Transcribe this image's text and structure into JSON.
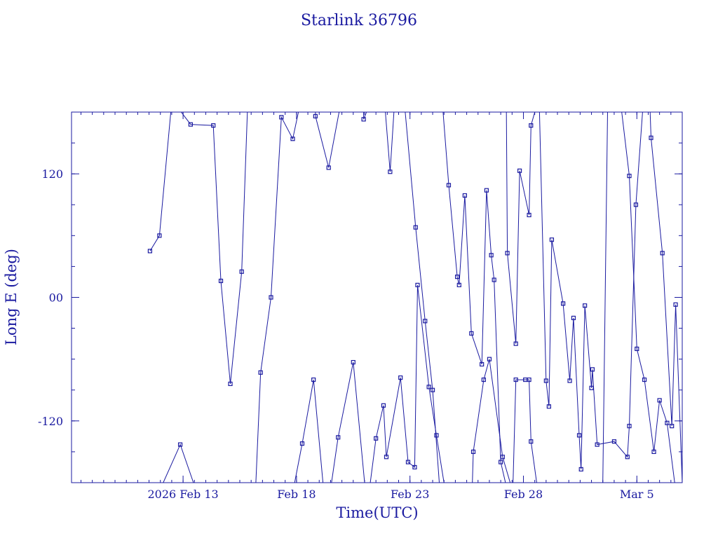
{
  "chart_data": {
    "type": "line",
    "title": "Starlink 36796",
    "xlabel": "Time(UTC)",
    "ylabel": "Long E (deg)",
    "x_unit": "date (UTC)",
    "xlim": [
      "2026-02-08T02:00",
      "2026-03-07T00:00"
    ],
    "ylim": [
      -180,
      180
    ],
    "x_ticks": [
      {
        "value": "2026-02-13T00:00",
        "label": "2026 Feb 13"
      },
      {
        "value": "2026-02-18T00:00",
        "label": "Feb 18"
      },
      {
        "value": "2026-02-23T00:00",
        "label": "Feb 23"
      },
      {
        "value": "2026-02-28T00:00",
        "label": "Feb 28"
      },
      {
        "value": "2026-03-05T00:00",
        "label": "Mar  5"
      }
    ],
    "y_ticks": [
      {
        "value": 120,
        "label": "120"
      },
      {
        "value": 0,
        "label": "00"
      },
      {
        "value": -120,
        "label": "-120"
      }
    ],
    "color": "#1a1aa0",
    "grid": false,
    "series": [
      {
        "points": [
          [
            "2026-02-11T13:00",
            45
          ],
          [
            "2026-02-11T23:00",
            60
          ],
          [
            "2026-02-12T11:00",
            180
          ],
          null,
          [
            "2026-02-12T22:00",
            180
          ],
          [
            "2026-02-13T08:00",
            168
          ],
          [
            "2026-02-14T08:00",
            167
          ],
          [
            "2026-02-14T16:00",
            16
          ],
          [
            "2026-02-15T02:00",
            -84
          ],
          [
            "2026-02-15T14:00",
            25
          ],
          [
            "2026-02-15T20:00",
            180
          ],
          null,
          [
            "2026-02-16T05:00",
            -180
          ],
          [
            "2026-02-16T10:00",
            -73
          ],
          [
            "2026-02-16T21:00",
            0
          ],
          [
            "2026-02-17T08:00",
            175
          ],
          [
            "2026-02-17T20:00",
            154
          ],
          [
            "2026-02-18T02:00",
            180
          ],
          null,
          [
            "2026-02-18T20:00",
            180
          ],
          [
            "2026-02-18T20:00",
            176
          ],
          [
            "2026-02-19T10:00",
            126
          ],
          [
            "2026-02-19T21:00",
            180
          ],
          null,
          [
            "2026-02-20T23:00",
            180
          ],
          [
            "2026-02-20T23:00",
            173
          ],
          [
            "2026-02-21T02:00",
            180
          ],
          null,
          [
            "2026-02-21T22:00",
            180
          ],
          [
            "2026-02-22T03:00",
            122
          ],
          [
            "2026-02-22T07:00",
            180
          ],
          null,
          [
            "2026-02-22T19:00",
            180
          ],
          [
            "2026-02-23T06:00",
            68
          ],
          [
            "2026-02-23T16:00",
            -23
          ],
          [
            "2026-02-24T00:00",
            -90
          ],
          [
            "2026-02-24T07:00",
            -180
          ],
          null,
          [
            "2026-02-24T11:00",
            180
          ],
          [
            "2026-02-24T17:00",
            109
          ],
          [
            "2026-02-25T02:00",
            20
          ],
          [
            "2026-02-25T04:00",
            12
          ],
          [
            "2026-02-25T10:00",
            99
          ],
          [
            "2026-02-25T17:00",
            -35
          ],
          [
            "2026-02-26T04:00",
            -65
          ],
          [
            "2026-02-26T09:00",
            104
          ],
          [
            "2026-02-26T14:00",
            41
          ],
          [
            "2026-02-26T17:00",
            17
          ],
          [
            "2026-02-27T00:00",
            -160
          ],
          [
            "2026-02-27T05:00",
            -180
          ],
          null,
          [
            "2026-02-27T06:00",
            180
          ],
          [
            "2026-02-27T07:00",
            43
          ],
          [
            "2026-02-27T16:00",
            -45
          ],
          [
            "2026-02-27T20:00",
            123
          ],
          [
            "2026-02-28T06:00",
            80
          ],
          [
            "2026-02-28T08:00",
            167
          ],
          [
            "2026-02-28T12:00",
            180
          ],
          null,
          [
            "2026-02-28T17:00",
            180
          ],
          [
            "2026-03-01T00:00",
            -81
          ],
          [
            "2026-03-01T03:00",
            -106
          ],
          [
            "2026-03-01T06:00",
            56
          ],
          [
            "2026-03-01T18:00",
            -6
          ],
          [
            "2026-03-02T01:00",
            -81
          ],
          [
            "2026-03-02T05:00",
            -20
          ],
          [
            "2026-03-02T11:00",
            -134
          ],
          [
            "2026-03-02T13:00",
            -167
          ],
          [
            "2026-03-02T17:00",
            -8
          ],
          [
            "2026-03-03T00:00",
            -88
          ],
          [
            "2026-03-03T01:00",
            -70
          ],
          [
            "2026-03-03T06:00",
            -143
          ],
          [
            "2026-03-04T00:00",
            -140
          ],
          [
            "2026-03-04T14:00",
            -155
          ],
          [
            "2026-03-04T16:00",
            -125
          ],
          [
            "2026-03-04T23:00",
            90
          ],
          [
            "2026-03-05T06:00",
            180
          ],
          null,
          [
            "2026-03-05T14:00",
            180
          ],
          [
            "2026-03-05T15:00",
            155
          ],
          [
            "2026-03-06T03:00",
            43
          ],
          [
            "2026-03-06T13:00",
            -125
          ],
          [
            "2026-03-06T17:00",
            -7
          ],
          [
            "2026-03-07T00:00",
            -180
          ]
        ]
      },
      {
        "points": [
          [
            "2026-02-12T03:00",
            -180
          ],
          [
            "2026-02-12T21:00",
            -143
          ],
          [
            "2026-02-13T11:00",
            -180
          ],
          null,
          [
            "2026-02-17T22:00",
            -180
          ],
          [
            "2026-02-18T06:00",
            -142
          ],
          [
            "2026-02-18T18:00",
            -80
          ],
          [
            "2026-02-19T04:00",
            -180
          ],
          null,
          [
            "2026-02-19T13:00",
            -180
          ],
          [
            "2026-02-19T20:00",
            -136
          ],
          [
            "2026-02-20T12:00",
            -63
          ],
          [
            "2026-02-21T00:00",
            -180
          ],
          null,
          [
            "2026-02-21T06:00",
            -180
          ],
          [
            "2026-02-21T12:00",
            -137
          ],
          [
            "2026-02-21T20:00",
            -105
          ],
          [
            "2026-02-21T23:00",
            -155
          ],
          [
            "2026-02-22T14:00",
            -78
          ],
          [
            "2026-02-22T22:00",
            -160
          ],
          [
            "2026-02-23T05:00",
            -165
          ],
          [
            "2026-02-23T08:00",
            12
          ],
          [
            "2026-02-23T20:00",
            -87
          ],
          [
            "2026-02-24T04:00",
            -134
          ],
          [
            "2026-02-24T12:00",
            -180
          ],
          null,
          [
            "2026-02-25T18:00",
            -180
          ],
          [
            "2026-02-25T19:00",
            -150
          ],
          [
            "2026-02-26T06:00",
            -80
          ],
          [
            "2026-02-26T12:00",
            -60
          ],
          [
            "2026-02-27T02:00",
            -155
          ],
          [
            "2026-02-27T10:00",
            -180
          ],
          null,
          [
            "2026-02-27T13:00",
            -180
          ],
          [
            "2026-02-27T16:00",
            -80
          ],
          [
            "2026-02-28T02:00",
            -80
          ],
          [
            "2026-02-28T06:00",
            -80
          ],
          [
            "2026-02-28T08:00",
            -140
          ],
          [
            "2026-02-28T14:00",
            -180
          ],
          null,
          [
            "2026-03-03T12:00",
            -180
          ],
          [
            "2026-03-03T17:00",
            180
          ],
          null,
          [
            "2026-03-04T08:00",
            180
          ],
          [
            "2026-03-04T16:00",
            118
          ],
          [
            "2026-03-05T00:00",
            -50
          ],
          [
            "2026-03-05T08:00",
            -80
          ],
          [
            "2026-03-05T18:00",
            -150
          ],
          [
            "2026-03-06T00:00",
            -100
          ],
          [
            "2026-03-06T08:00",
            -122
          ],
          [
            "2026-03-06T16:00",
            -180
          ]
        ]
      }
    ]
  }
}
